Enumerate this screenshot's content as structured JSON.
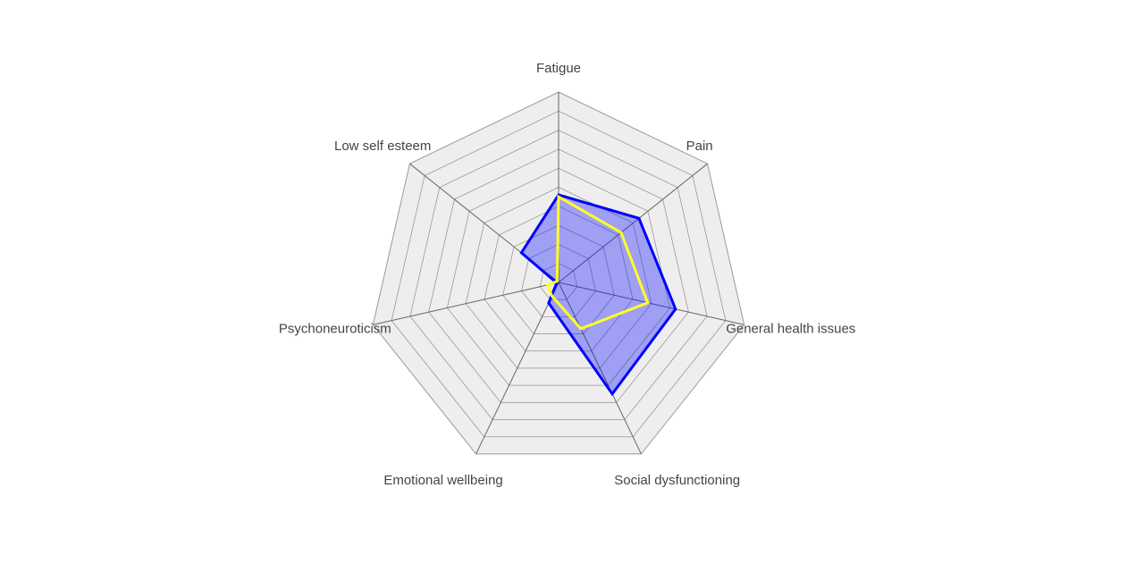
{
  "chart_data": {
    "type": "radar",
    "axes": [
      "Fatigue",
      "Pain",
      "General health issues",
      "Social dysfunctioning",
      "Emotional wellbeing",
      "Psychoneuroticism",
      "Low self esteem"
    ],
    "range": [
      0,
      10
    ],
    "grid_levels": 10,
    "series": [
      {
        "values": [
          4.6,
          5.4,
          6.3,
          6.5,
          1.2,
          0.1,
          2.5
        ],
        "color": "#0000ff",
        "fill": "rgba(0,0,255,0.33)",
        "filled": true
      },
      {
        "values": [
          4.5,
          4.2,
          4.8,
          2.7,
          0.8,
          0.6,
          0.1
        ],
        "color": "#ffff22",
        "filled": false
      }
    ]
  },
  "colors": {
    "grid_fill": "#eeeeee",
    "grid_line": "#999999",
    "axis_line": "#666666"
  }
}
